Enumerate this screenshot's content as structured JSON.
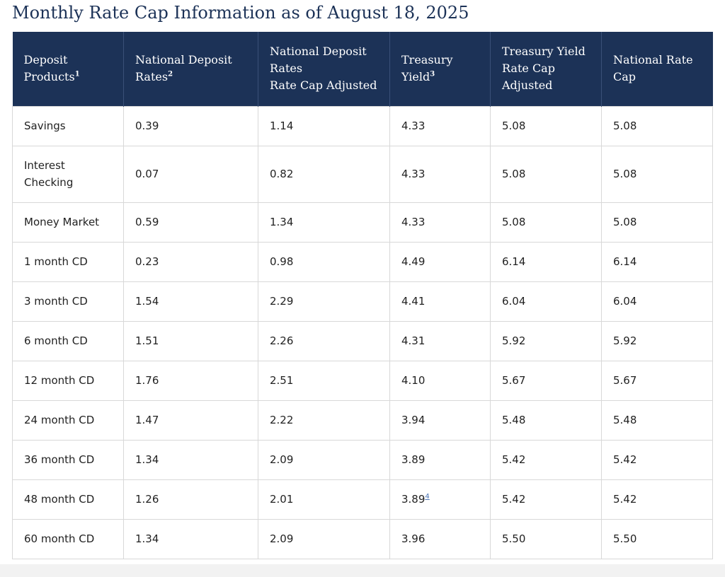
{
  "title": "Monthly Rate Cap Information as of August 18, 2025",
  "table": {
    "headers": [
      {
        "text": "Deposit\nProducts",
        "sup": "1"
      },
      {
        "text": "National Deposit\nRates",
        "sup": "2"
      },
      {
        "text": "National Deposit\nRates\nRate Cap Adjusted",
        "sup": ""
      },
      {
        "text": "Treasury\nYield",
        "sup": "3"
      },
      {
        "text": "Treasury Yield\nRate Cap\nAdjusted",
        "sup": ""
      },
      {
        "text": "National Rate\nCap",
        "sup": ""
      }
    ],
    "rows": [
      {
        "product": "Savings",
        "deposit_rate": "0.39",
        "deposit_rate_adjusted": "1.14",
        "treasury_yield": "4.33",
        "treasury_yield_note": "",
        "treasury_adjusted": "5.08",
        "national_rate_cap": "5.08"
      },
      {
        "product": "Interest\nChecking",
        "deposit_rate": "0.07",
        "deposit_rate_adjusted": "0.82",
        "treasury_yield": "4.33",
        "treasury_yield_note": "",
        "treasury_adjusted": "5.08",
        "national_rate_cap": "5.08"
      },
      {
        "product": "Money Market",
        "deposit_rate": "0.59",
        "deposit_rate_adjusted": "1.34",
        "treasury_yield": "4.33",
        "treasury_yield_note": "",
        "treasury_adjusted": "5.08",
        "national_rate_cap": "5.08"
      },
      {
        "product": "1 month CD",
        "deposit_rate": "0.23",
        "deposit_rate_adjusted": "0.98",
        "treasury_yield": "4.49",
        "treasury_yield_note": "",
        "treasury_adjusted": "6.14",
        "national_rate_cap": "6.14"
      },
      {
        "product": "3 month CD",
        "deposit_rate": "1.54",
        "deposit_rate_adjusted": "2.29",
        "treasury_yield": "4.41",
        "treasury_yield_note": "",
        "treasury_adjusted": "6.04",
        "national_rate_cap": "6.04"
      },
      {
        "product": "6 month CD",
        "deposit_rate": "1.51",
        "deposit_rate_adjusted": "2.26",
        "treasury_yield": "4.31",
        "treasury_yield_note": "",
        "treasury_adjusted": "5.92",
        "national_rate_cap": "5.92"
      },
      {
        "product": "12 month CD",
        "deposit_rate": "1.76",
        "deposit_rate_adjusted": "2.51",
        "treasury_yield": "4.10",
        "treasury_yield_note": "",
        "treasury_adjusted": "5.67",
        "national_rate_cap": "5.67"
      },
      {
        "product": "24 month CD",
        "deposit_rate": "1.47",
        "deposit_rate_adjusted": "2.22",
        "treasury_yield": "3.94",
        "treasury_yield_note": "",
        "treasury_adjusted": "5.48",
        "national_rate_cap": "5.48"
      },
      {
        "product": "36 month CD",
        "deposit_rate": "1.34",
        "deposit_rate_adjusted": "2.09",
        "treasury_yield": "3.89",
        "treasury_yield_note": "",
        "treasury_adjusted": "5.42",
        "national_rate_cap": "5.42"
      },
      {
        "product": "48 month CD",
        "deposit_rate": "1.26",
        "deposit_rate_adjusted": "2.01",
        "treasury_yield": "3.89",
        "treasury_yield_note": "4",
        "treasury_adjusted": "5.42",
        "national_rate_cap": "5.42"
      },
      {
        "product": "60 month CD",
        "deposit_rate": "1.34",
        "deposit_rate_adjusted": "2.09",
        "treasury_yield": "3.96",
        "treasury_yield_note": "",
        "treasury_adjusted": "5.50",
        "national_rate_cap": "5.50"
      }
    ]
  },
  "colors": {
    "header_background": "#1c3257",
    "title_text": "#1c3257",
    "cell_border": "#d8d8d8",
    "footnote_link": "#4a74b5"
  }
}
